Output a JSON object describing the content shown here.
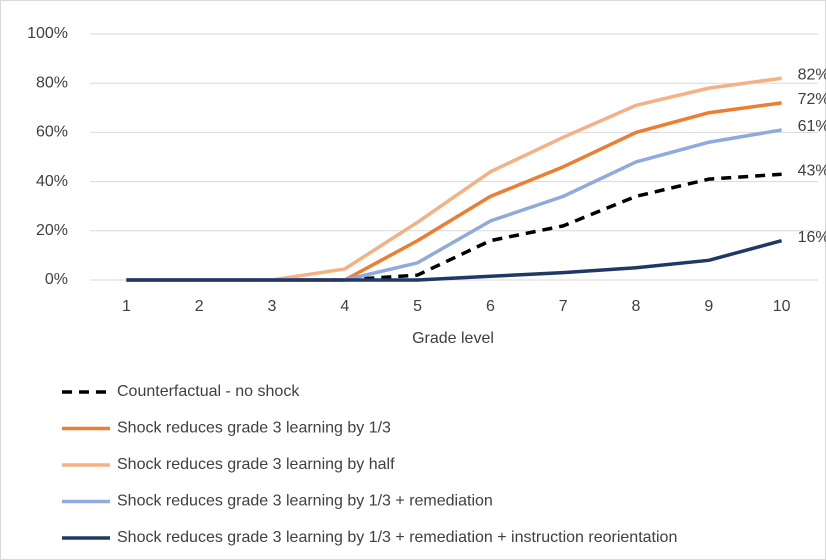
{
  "chart_data": {
    "type": "line",
    "x_label": "Grade level",
    "categories": [
      "1",
      "2",
      "3",
      "4",
      "5",
      "6",
      "7",
      "8",
      "9",
      "10"
    ],
    "ylim": [
      0,
      100
    ],
    "yticks": [
      {
        "value": 0,
        "label": "0%"
      },
      {
        "value": 20,
        "label": "20%"
      },
      {
        "value": 40,
        "label": "40%"
      },
      {
        "value": 60,
        "label": "60%"
      },
      {
        "value": 80,
        "label": "80%"
      },
      {
        "value": 100,
        "label": "100%"
      }
    ],
    "grid": true,
    "legend": "bottom",
    "series": [
      {
        "name": "Counterfactual - no shock",
        "color": "#000000",
        "dashed": true,
        "values": [
          0,
          0,
          0,
          0,
          2,
          16,
          22,
          34,
          41,
          43
        ],
        "value_labels": [
          null,
          null,
          null,
          null,
          null,
          null,
          null,
          null,
          null,
          "43%"
        ]
      },
      {
        "name": "Shock reduces grade 3 learning by 1/3",
        "color": "#ed7d31",
        "values": [
          0,
          0,
          0,
          0,
          16,
          34,
          46,
          60,
          68,
          72
        ],
        "value_labels": [
          null,
          null,
          null,
          null,
          null,
          null,
          null,
          null,
          null,
          "72%"
        ]
      },
      {
        "name": "Shock reduces grade 3 learning by half",
        "color": "#f4b183",
        "values": [
          0,
          0,
          0,
          4.5,
          23.5,
          44,
          58,
          71,
          78,
          82
        ],
        "value_labels": [
          null,
          null,
          null,
          null,
          null,
          null,
          null,
          null,
          null,
          "82%"
        ]
      },
      {
        "name": "Shock reduces grade 3 learning by 1/3 + remediation",
        "color": "#8faadc",
        "values": [
          0,
          0,
          0,
          0,
          7,
          24,
          34,
          48,
          56,
          61
        ],
        "value_labels": [
          null,
          null,
          null,
          null,
          null,
          null,
          null,
          null,
          null,
          "61%"
        ]
      },
      {
        "name": "Shock reduces grade 3 learning by 1/3 + remediation + instruction reorientation",
        "color": "#1f3864",
        "values": [
          0,
          0,
          0,
          0,
          0,
          1.5,
          3,
          5,
          8,
          16
        ],
        "value_labels": [
          null,
          null,
          null,
          null,
          null,
          null,
          null,
          null,
          null,
          "16%"
        ]
      }
    ]
  }
}
